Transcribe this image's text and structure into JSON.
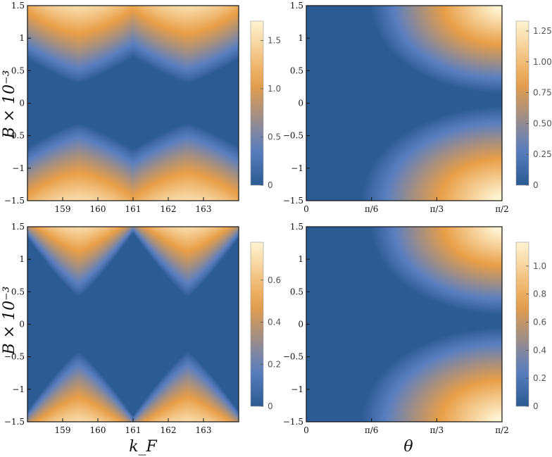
{
  "colors": {
    "low": "#2c5a92",
    "mid": "#5b7fc0",
    "high": "#e89f48",
    "peak": "#fff4d2"
  },
  "axis_labels": {
    "y": "B × 10⁻³",
    "x_left": "k_F",
    "x_right": "θ"
  },
  "chart_data": [
    {
      "id": "top-left",
      "type": "heatmap",
      "x_range": [
        158.0,
        164.0
      ],
      "y_range": [
        -1.5,
        1.5
      ],
      "x_ticks": [
        {
          "v": 159,
          "label": "159"
        },
        {
          "v": 160,
          "label": "160"
        },
        {
          "v": 161,
          "label": "161"
        },
        {
          "v": 162,
          "label": "162"
        },
        {
          "v": 163,
          "label": "163"
        }
      ],
      "y_ticks": [
        {
          "v": 1.5,
          "label": "1.5"
        },
        {
          "v": 1,
          "label": "1"
        },
        {
          "v": 0.5,
          "label": "0.5"
        },
        {
          "v": 0,
          "label": "0"
        },
        {
          "v": -0.5,
          "label": "−0.5"
        },
        {
          "v": -1,
          "label": "−1"
        },
        {
          "v": -1.5,
          "label": "−1.5"
        }
      ],
      "colorbar": {
        "range": [
          0,
          1.7
        ],
        "ticks": [
          {
            "v": 0,
            "label": "0"
          },
          {
            "v": 0.5,
            "label": "0.5"
          },
          {
            "v": 1.0,
            "label": "1.0"
          },
          {
            "v": 1.5,
            "label": "1.5"
          }
        ]
      },
      "model": "kf",
      "params": {
        "peaks": [
          159.45,
          162.55
        ],
        "threshold_min": 0.3,
        "threshold_max": 0.72,
        "zmax": 1.7
      }
    },
    {
      "id": "top-right",
      "type": "heatmap",
      "x_range": [
        0,
        1.5708
      ],
      "y_range": [
        -1.5,
        1.5
      ],
      "x_ticks": [
        {
          "v": 0,
          "label": "0"
        },
        {
          "v": 0.5236,
          "label": "π/6"
        },
        {
          "v": 1.0472,
          "label": "π/3"
        },
        {
          "v": 1.5708,
          "label": "π/2"
        }
      ],
      "y_ticks": [
        {
          "v": 1.5,
          "label": "1.5"
        },
        {
          "v": 1,
          "label": "1"
        },
        {
          "v": 0.5,
          "label": "0.5"
        },
        {
          "v": 0,
          "label": "0"
        },
        {
          "v": -0.5,
          "label": "−0.5"
        },
        {
          "v": -1,
          "label": "−1"
        },
        {
          "v": -1.5,
          "label": "−1.5"
        }
      ],
      "colorbar": {
        "range": [
          0,
          1.33
        ],
        "ticks": [
          {
            "v": 0,
            "label": "0"
          },
          {
            "v": 0.25,
            "label": "0.25"
          },
          {
            "v": 0.5,
            "label": "0.50"
          },
          {
            "v": 0.75,
            "label": "0.75"
          },
          {
            "v": 1.0,
            "label": "1.00"
          },
          {
            "v": 1.25,
            "label": "1.25"
          }
        ]
      },
      "model": "theta",
      "params": {
        "zmax": 1.33,
        "shift": 0.05
      }
    },
    {
      "id": "bottom-left",
      "type": "heatmap",
      "x_range": [
        158.0,
        164.0
      ],
      "y_range": [
        -1.5,
        1.5
      ],
      "x_ticks": [
        {
          "v": 159,
          "label": "159"
        },
        {
          "v": 160,
          "label": "160"
        },
        {
          "v": 161,
          "label": "161"
        },
        {
          "v": 162,
          "label": "162"
        },
        {
          "v": 163,
          "label": "163"
        }
      ],
      "y_ticks": [
        {
          "v": 1.5,
          "label": "1.5"
        },
        {
          "v": 1,
          "label": "1"
        },
        {
          "v": 0.5,
          "label": "0.5"
        },
        {
          "v": 0,
          "label": "0"
        },
        {
          "v": -0.5,
          "label": "−0.5"
        },
        {
          "v": -1,
          "label": "−1"
        },
        {
          "v": -1.5,
          "label": "−1.5"
        }
      ],
      "colorbar": {
        "range": [
          0,
          0.78
        ],
        "ticks": [
          {
            "v": 0,
            "label": "0"
          },
          {
            "v": 0.2,
            "label": "0.2"
          },
          {
            "v": 0.4,
            "label": "0.4"
          },
          {
            "v": 0.6,
            "label": "0.6"
          }
        ]
      },
      "model": "kf",
      "params": {
        "peaks": [
          159.45,
          162.55
        ],
        "threshold_min": 0.42,
        "threshold_max": 1.45,
        "zmax": 0.78
      }
    },
    {
      "id": "bottom-right",
      "type": "heatmap",
      "x_range": [
        0,
        1.5708
      ],
      "y_range": [
        -1.5,
        1.5
      ],
      "x_ticks": [
        {
          "v": 0,
          "label": "0"
        },
        {
          "v": 0.5236,
          "label": "π/6"
        },
        {
          "v": 1.0472,
          "label": "π/3"
        },
        {
          "v": 1.5708,
          "label": "π/2"
        }
      ],
      "y_ticks": [
        {
          "v": 1.5,
          "label": "1.5"
        },
        {
          "v": 1,
          "label": "1"
        },
        {
          "v": 0.5,
          "label": "0.5"
        },
        {
          "v": 0,
          "label": "0"
        },
        {
          "v": -0.5,
          "label": "−0.5"
        },
        {
          "v": -1,
          "label": "−1"
        },
        {
          "v": -1.5,
          "label": "−1.5"
        }
      ],
      "colorbar": {
        "range": [
          0,
          1.17
        ],
        "ticks": [
          {
            "v": 0,
            "label": "0"
          },
          {
            "v": 0.2,
            "label": "0.2"
          },
          {
            "v": 0.4,
            "label": "0.4"
          },
          {
            "v": 0.6,
            "label": "0.6"
          },
          {
            "v": 0.8,
            "label": "0.8"
          },
          {
            "v": 1.0,
            "label": "1.0"
          }
        ]
      },
      "model": "theta",
      "params": {
        "zmax": 1.17,
        "shift": 0.12
      }
    }
  ]
}
